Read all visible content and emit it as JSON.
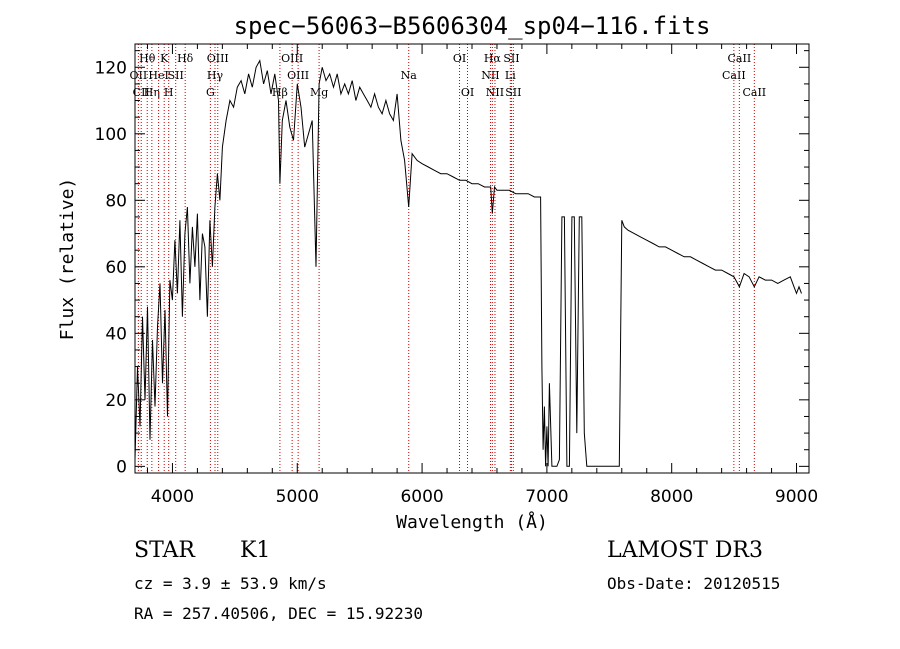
{
  "chart_data": {
    "type": "line",
    "title": "spec−56063−B5606304_sp04−116.fits",
    "xlabel": "Wavelength (Å)",
    "ylabel": "Flux (relative)",
    "xlim": [
      3700,
      9100
    ],
    "ylim": [
      -2,
      127
    ],
    "xticks": [
      4000,
      5000,
      6000,
      7000,
      8000,
      9000
    ],
    "yticks": [
      0,
      20,
      40,
      60,
      80,
      100,
      120
    ],
    "grid": false,
    "line_color": "#000000",
    "marker_color": "#cc0000",
    "series": [
      {
        "x": [
          3700,
          3720,
          3740,
          3760,
          3780,
          3800,
          3820,
          3840,
          3860,
          3880,
          3900,
          3920,
          3940,
          3960,
          3980,
          4000,
          4020,
          4040,
          4060,
          4080,
          4100,
          4120,
          4140,
          4160,
          4180,
          4200,
          4220,
          4240,
          4260,
          4280,
          4300,
          4320,
          4340,
          4360,
          4380,
          4400,
          4430,
          4460,
          4490,
          4520,
          4550,
          4580,
          4610,
          4640,
          4670,
          4700,
          4730,
          4760,
          4790,
          4820,
          4850,
          4861,
          4880,
          4910,
          4940,
          4970,
          5000,
          5030,
          5060,
          5090,
          5120,
          5150,
          5175,
          5200,
          5230,
          5260,
          5290,
          5320,
          5350,
          5380,
          5410,
          5440,
          5470,
          5500,
          5530,
          5560,
          5590,
          5620,
          5650,
          5680,
          5710,
          5740,
          5770,
          5800,
          5830,
          5860,
          5893,
          5920,
          5960,
          6000,
          6050,
          6100,
          6150,
          6200,
          6250,
          6300,
          6350,
          6400,
          6450,
          6500,
          6550,
          6563,
          6580,
          6600,
          6650,
          6700,
          6750,
          6800,
          6850,
          6900,
          6950,
          6960,
          6970,
          6980,
          6990,
          7000,
          7010,
          7020,
          7040,
          7080,
          7100,
          7120,
          7140,
          7160,
          7180,
          7200,
          7220,
          7240,
          7260,
          7280,
          7300,
          7320,
          7350,
          7400,
          7450,
          7500,
          7550,
          7580,
          7600,
          7620,
          7650,
          7700,
          7750,
          7800,
          7850,
          7900,
          7950,
          8000,
          8050,
          8100,
          8150,
          8200,
          8250,
          8300,
          8350,
          8400,
          8450,
          8498,
          8542,
          8580,
          8620,
          8662,
          8700,
          8750,
          8800,
          8850,
          8900,
          8950,
          8980,
          9000,
          9020,
          9040
        ],
        "y": [
          2,
          30,
          12,
          45,
          20,
          48,
          8,
          38,
          18,
          42,
          55,
          25,
          47,
          15,
          56,
          50,
          68,
          52,
          74,
          45,
          70,
          78,
          55,
          72,
          60,
          76,
          50,
          70,
          66,
          45,
          74,
          60,
          78,
          88,
          80,
          96,
          104,
          110,
          108,
          114,
          116,
          112,
          118,
          114,
          120,
          122,
          115,
          119,
          112,
          118,
          110,
          85,
          104,
          110,
          102,
          98,
          115,
          108,
          96,
          100,
          104,
          60,
          115,
          120,
          116,
          118,
          114,
          118,
          112,
          115,
          112,
          116,
          110,
          114,
          112,
          110,
          108,
          112,
          108,
          106,
          110,
          106,
          104,
          112,
          98,
          92,
          78,
          94,
          92,
          91,
          90,
          89,
          88,
          88,
          87,
          86,
          86,
          85,
          85,
          84,
          84,
          76,
          84,
          83,
          83,
          83,
          82,
          82,
          82,
          81,
          81,
          30,
          5,
          18,
          0,
          12,
          0,
          25,
          0,
          0,
          2,
          75,
          75,
          0,
          0,
          75,
          75,
          10,
          75,
          75,
          10,
          0,
          0,
          0,
          0,
          0,
          0,
          0,
          74,
          72,
          71,
          70,
          69,
          68,
          67,
          66,
          66,
          65,
          64,
          63,
          63,
          62,
          61,
          60,
          59,
          59,
          58,
          57,
          54,
          58,
          57,
          54,
          57,
          56,
          56,
          55,
          56,
          57,
          54,
          52,
          54,
          52
        ]
      }
    ],
    "lines": [
      {
        "x": 3727,
        "label": "OII",
        "row": 1
      },
      {
        "x": 3750,
        "label": "CII",
        "row": 2
      },
      {
        "x": 3798,
        "label": "Hθ",
        "row": 0
      },
      {
        "x": 3835,
        "label": "Hη",
        "row": 2
      },
      {
        "x": 3889,
        "label": "HeI",
        "row": 1
      },
      {
        "x": 3934,
        "label": "K",
        "row": 0
      },
      {
        "x": 3970,
        "label": "H",
        "row": 2
      },
      {
        "x": 4026,
        "label": "SII",
        "row": 1
      },
      {
        "x": 4102,
        "label": "Hδ",
        "row": 0
      },
      {
        "x": 4304,
        "label": "G",
        "row": 2
      },
      {
        "x": 4341,
        "label": "Hγ",
        "row": 1
      },
      {
        "x": 4363,
        "label": "OIII",
        "row": 0
      },
      {
        "x": 4861,
        "label": "Hβ",
        "row": 2
      },
      {
        "x": 4959,
        "label": "OIII",
        "row": 0
      },
      {
        "x": 5007,
        "label": "OIII",
        "row": 1
      },
      {
        "x": 5175,
        "label": "Mg",
        "row": 2
      },
      {
        "x": 5893,
        "label": "Na",
        "row": 1
      },
      {
        "x": 6300,
        "label": "OI",
        "row": 0
      },
      {
        "x": 6364,
        "label": "OI",
        "row": 2
      },
      {
        "x": 6548,
        "label": "NII",
        "row": 1
      },
      {
        "x": 6563,
        "label": "Hα",
        "row": 0
      },
      {
        "x": 6584,
        "label": "NII",
        "row": 2
      },
      {
        "x": 6707,
        "label": "Li",
        "row": 1
      },
      {
        "x": 6716,
        "label": "SII",
        "row": 0
      },
      {
        "x": 6731,
        "label": "SII",
        "row": 2
      },
      {
        "x": 8498,
        "label": "CaII",
        "row": 1
      },
      {
        "x": 8542,
        "label": "CaII",
        "row": 0
      },
      {
        "x": 8662,
        "label": "CaII",
        "row": 2
      }
    ]
  },
  "info": {
    "class": "STAR",
    "subclass": "K1",
    "survey": "LAMOST DR3",
    "cz": "cz = 3.9 ± 53.9 km/s",
    "obs_date": "Obs-Date: 20120515",
    "coords": "RA = 257.40506, DEC =  15.92230"
  }
}
